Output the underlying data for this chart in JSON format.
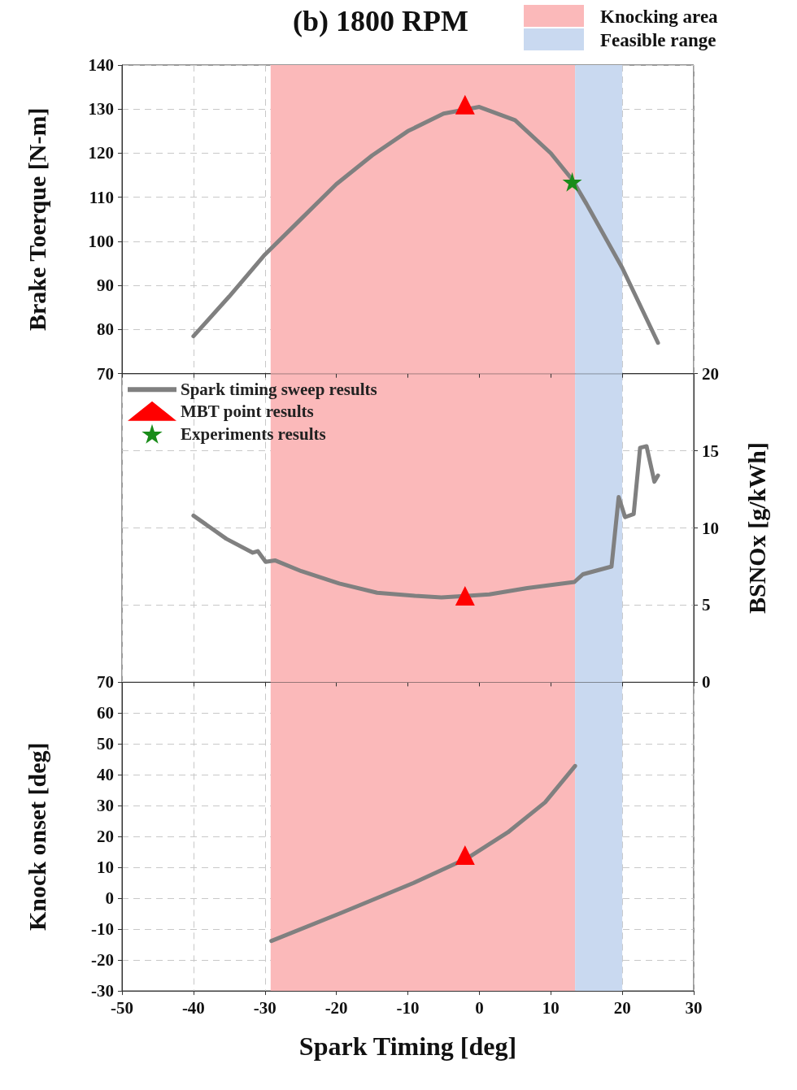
{
  "chart_data": [
    {
      "type": "line",
      "title": "(b) 1800 RPM",
      "ylabel": "Brake Toerque [N-m]",
      "xlim": [
        -50,
        30
      ],
      "xticks": [
        -50,
        -40,
        -30,
        -20,
        -10,
        0,
        10,
        20,
        30
      ],
      "ylim": [
        70,
        140
      ],
      "yticks": [
        70,
        80,
        90,
        100,
        110,
        120,
        130,
        140
      ],
      "grid": true,
      "legend": "bottom left",
      "tick_labels": "y",
      "bands": [
        {
          "axis": "x",
          "from": -29.2,
          "to": 13.4,
          "label": "Knocking area",
          "color": "#fbb9ba"
        },
        {
          "axis": "x",
          "from": 13.4,
          "to": 20,
          "label": "Feasible range",
          "color": "#c9d9f0"
        }
      ],
      "series": [
        {
          "name": "Spark timing sweep results",
          "type": "line",
          "marker": "none",
          "color": "#808080",
          "x": [
            -40,
            -35,
            -30,
            -25,
            -20,
            -15,
            -10,
            -5,
            0,
            5,
            10,
            13,
            15,
            20,
            25
          ],
          "values": [
            78.5,
            87.5,
            97,
            105,
            113,
            119.5,
            125,
            129,
            130.5,
            127.5,
            120,
            114,
            108.5,
            94,
            77
          ]
        },
        {
          "name": "MBT point results",
          "type": "scatter",
          "marker": "triangle",
          "color": "#ff0000",
          "x": [
            -2
          ],
          "values": [
            131
          ]
        },
        {
          "name": "Experiments results",
          "type": "scatter",
          "marker": "star",
          "color": "#1a8c1a",
          "x": [
            13
          ],
          "values": [
            113.5
          ]
        }
      ]
    },
    {
      "type": "line",
      "y2label": "BSNOx [g/kWh]",
      "xlim": [
        -50,
        30
      ],
      "xticks": [
        -50,
        -40,
        -30,
        -20,
        -10,
        0,
        10,
        20,
        30
      ],
      "y2lim": [
        0,
        20
      ],
      "y2ticks": [
        0,
        5,
        10,
        15,
        20
      ],
      "grid": true,
      "tick_labels": "y",
      "bands": [
        {
          "axis": "x",
          "from": -29.2,
          "to": 13.4,
          "color": "#fbb9ba"
        },
        {
          "axis": "x",
          "from": 13.4,
          "to": 20,
          "color": "#c9d9f0"
        }
      ],
      "series": [
        {
          "type": "line",
          "marker": "none",
          "color": "#808080",
          "axis": "y2",
          "x": [
            -40,
            -35.4,
            -31.7,
            -31,
            -29.9,
            -28.6,
            -24.9,
            -19.6,
            -14.3,
            -9,
            -5.3,
            -1.6,
            1.4,
            6.7,
            13.3,
            14.5,
            18.5,
            19.5,
            20.4,
            21.6,
            22.5,
            23.4,
            24.5,
            25
          ],
          "values": [
            10.8,
            9.3,
            8.4,
            8.5,
            7.8,
            7.9,
            7.2,
            6.4,
            5.8,
            5.6,
            5.5,
            5.6,
            5.7,
            6.1,
            6.5,
            7,
            7.5,
            12,
            10.7,
            10.9,
            15.2,
            15.3,
            13,
            13.4
          ]
        },
        {
          "type": "scatter",
          "marker": "triangle",
          "color": "#ff0000",
          "axis": "y2",
          "x": [
            -2
          ],
          "values": [
            5.6
          ]
        }
      ]
    },
    {
      "type": "line",
      "xlabel": "Spark Timing [deg]",
      "ylabel": "Knock onset [deg]",
      "xlim": [
        -50,
        30
      ],
      "xticks": [
        -50,
        -40,
        -30,
        -20,
        -10,
        0,
        10,
        20,
        30
      ],
      "ylim": [
        -30,
        70
      ],
      "yticks": [
        -30,
        -20,
        -10,
        0,
        10,
        20,
        30,
        40,
        50,
        60,
        70
      ],
      "grid": true,
      "bands": [
        {
          "axis": "x",
          "from": -29.2,
          "to": 13.4,
          "color": "#fbb9ba"
        },
        {
          "axis": "x",
          "from": 13.4,
          "to": 20,
          "color": "#c9d9f0"
        }
      ],
      "series": [
        {
          "type": "line",
          "marker": "none",
          "color": "#808080",
          "x": [
            -29.1,
            -19.3,
            -9.2,
            -1.6,
            4,
            9.2,
            13.4
          ],
          "values": [
            -13.8,
            -4.7,
            5,
            13.1,
            21.4,
            31.1,
            42.9
          ]
        },
        {
          "type": "scatter",
          "marker": "triangle",
          "color": "#ff0000",
          "x": [
            -2
          ],
          "values": [
            14
          ]
        }
      ]
    }
  ]
}
